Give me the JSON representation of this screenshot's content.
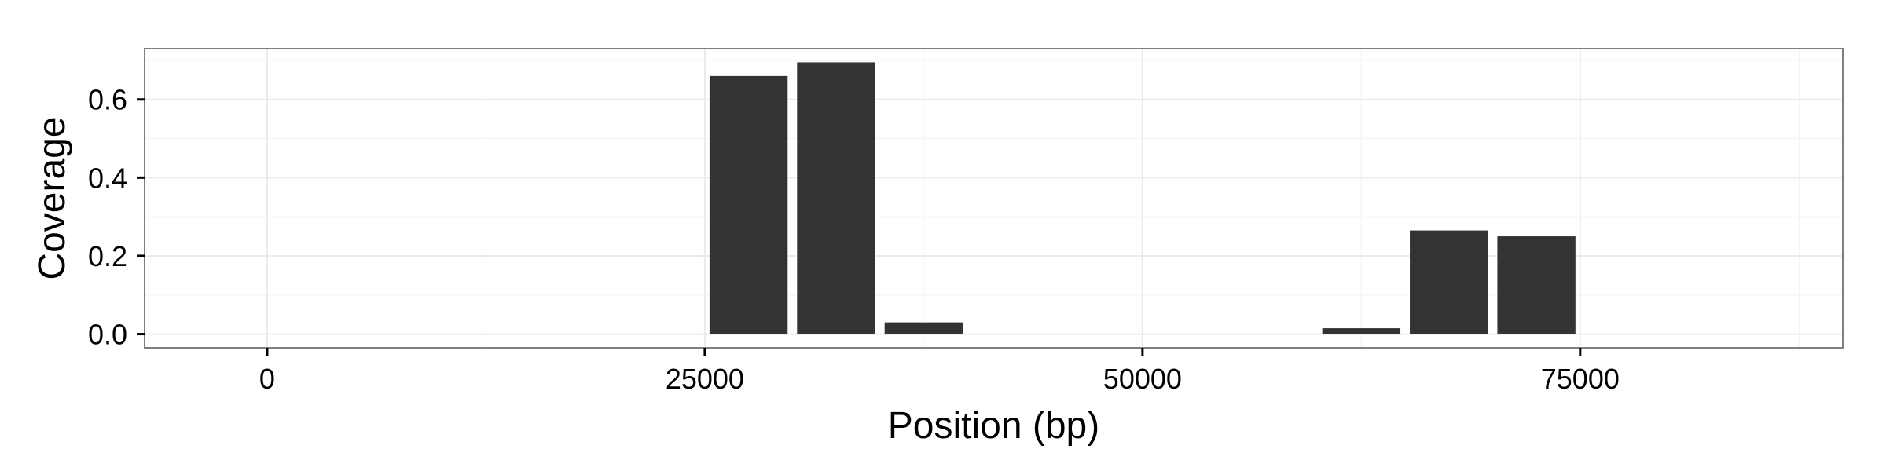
{
  "chart_data": {
    "type": "bar",
    "xlabel": "Position (bp)",
    "ylabel": "Coverage",
    "xlim": [
      -7000,
      90000
    ],
    "ylim": [
      -0.035,
      0.73
    ],
    "x_ticks": [
      0,
      25000,
      50000,
      75000
    ],
    "x_tick_labels": [
      "0",
      "25000",
      "50000",
      "75000"
    ],
    "y_ticks": [
      0.0,
      0.2,
      0.4,
      0.6
    ],
    "y_tick_labels": [
      "0.0",
      "0.2",
      "0.4",
      "0.6"
    ],
    "bin_width": 5000,
    "x": [
      27500,
      32500,
      37500,
      42500,
      47500,
      52500,
      57500,
      62500,
      67500,
      72500
    ],
    "values": [
      0.66,
      0.695,
      0.03,
      0,
      0,
      0,
      0,
      0.015,
      0.265,
      0.25
    ],
    "grid": true,
    "bar_color": "#333333",
    "panel_border_color": "#7f7f7f",
    "grid_color": "#ebebeb"
  }
}
